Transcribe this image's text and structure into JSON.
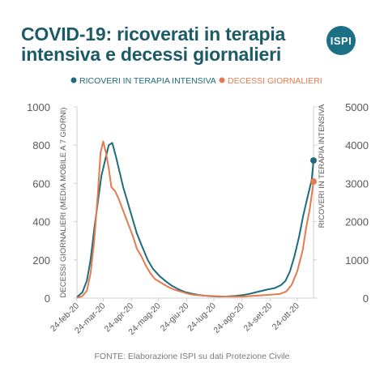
{
  "title_line1": "COVID-19: ricoverati in terapia",
  "title_line2": "intensiva e decessi giornalieri",
  "logo_text": "ISPI",
  "source": "FONTE: Elaborazione ISPI su dati Protezione Civile",
  "colors": {
    "title": "#1d5a67",
    "logo_bg": "#1c6f84",
    "icu": "#1e6b7b",
    "deaths": "#e57a4e",
    "axis_text": "#595959",
    "grid": "#cfcfcf"
  },
  "chart_data": {
    "type": "line",
    "legend_position": "top",
    "grid": false,
    "ylabel_left": "DECESSI GIORNALIERI (MEDIA MOBILE A 7 GIORNI)",
    "ylabel_right": "RICOVERI IN TERAPIA INTENSIVA",
    "ylim_left": [
      0,
      1000
    ],
    "ylim_right": [
      0,
      5000
    ],
    "yticks_left": [
      0,
      200,
      400,
      600,
      800,
      1000
    ],
    "yticks_right": [
      0,
      1000,
      2000,
      3000,
      4000,
      5000
    ],
    "xlim": [
      "2020-02-24",
      "2020-11-11"
    ],
    "xticks": [
      {
        "date": "2020-02-24",
        "label": "24-feb-20"
      },
      {
        "date": "2020-03-24",
        "label": "24-mar-20"
      },
      {
        "date": "2020-04-24",
        "label": "24-apr-20"
      },
      {
        "date": "2020-05-24",
        "label": "24-mag-20"
      },
      {
        "date": "2020-06-24",
        "label": "24-giu-20"
      },
      {
        "date": "2020-07-24",
        "label": "24-lug-20"
      },
      {
        "date": "2020-08-24",
        "label": "24-ago-20"
      },
      {
        "date": "2020-09-24",
        "label": "24-set-20"
      },
      {
        "date": "2020-10-24",
        "label": "24-ott-20"
      }
    ],
    "series": [
      {
        "name": "RICOVERI IN TERAPIA INTENSIVA",
        "axis": "right",
        "color": "#1e6b7b",
        "points": [
          [
            "2020-02-24",
            25
          ],
          [
            "2020-03-01",
            150
          ],
          [
            "2020-03-06",
            462
          ],
          [
            "2020-03-10",
            1000
          ],
          [
            "2020-03-14",
            1800
          ],
          [
            "2020-03-18",
            2500
          ],
          [
            "2020-03-22",
            3200
          ],
          [
            "2020-03-26",
            3600
          ],
          [
            "2020-03-30",
            4000
          ],
          [
            "2020-04-03",
            4060
          ],
          [
            "2020-04-07",
            3700
          ],
          [
            "2020-04-11",
            3300
          ],
          [
            "2020-04-15",
            2900
          ],
          [
            "2020-04-20",
            2500
          ],
          [
            "2020-04-25",
            2100
          ],
          [
            "2020-04-30",
            1700
          ],
          [
            "2020-05-05",
            1400
          ],
          [
            "2020-05-12",
            1000
          ],
          [
            "2020-05-18",
            760
          ],
          [
            "2020-05-25",
            580
          ],
          [
            "2020-06-01",
            440
          ],
          [
            "2020-06-08",
            320
          ],
          [
            "2020-06-15",
            230
          ],
          [
            "2020-06-22",
            160
          ],
          [
            "2020-07-01",
            110
          ],
          [
            "2020-07-10",
            75
          ],
          [
            "2020-07-20",
            50
          ],
          [
            "2020-07-30",
            40
          ],
          [
            "2020-08-08",
            45
          ],
          [
            "2020-08-17",
            60
          ],
          [
            "2020-08-25",
            80
          ],
          [
            "2020-09-01",
            110
          ],
          [
            "2020-09-08",
            150
          ],
          [
            "2020-09-15",
            190
          ],
          [
            "2020-09-22",
            230
          ],
          [
            "2020-09-29",
            260
          ],
          [
            "2020-10-06",
            340
          ],
          [
            "2020-10-11",
            450
          ],
          [
            "2020-10-16",
            700
          ],
          [
            "2020-10-21",
            1100
          ],
          [
            "2020-10-26",
            1600
          ],
          [
            "2020-10-31",
            2200
          ],
          [
            "2020-11-05",
            2700
          ],
          [
            "2020-11-09",
            3100
          ],
          [
            "2020-11-11",
            3600
          ]
        ]
      },
      {
        "name": "DECESSI GIORNALIERI",
        "axis": "left",
        "color": "#e57a4e",
        "points": [
          [
            "2020-02-24",
            2
          ],
          [
            "2020-03-01",
            10
          ],
          [
            "2020-03-06",
            40
          ],
          [
            "2020-03-10",
            130
          ],
          [
            "2020-03-14",
            300
          ],
          [
            "2020-03-18",
            540
          ],
          [
            "2020-03-21",
            760
          ],
          [
            "2020-03-24",
            820
          ],
          [
            "2020-03-27",
            760
          ],
          [
            "2020-03-30",
            680
          ],
          [
            "2020-04-02",
            580
          ],
          [
            "2020-04-06",
            560
          ],
          [
            "2020-04-10",
            520
          ],
          [
            "2020-04-14",
            470
          ],
          [
            "2020-04-18",
            420
          ],
          [
            "2020-04-22",
            370
          ],
          [
            "2020-04-26",
            320
          ],
          [
            "2020-04-30",
            260
          ],
          [
            "2020-05-05",
            220
          ],
          [
            "2020-05-10",
            170
          ],
          [
            "2020-05-15",
            130
          ],
          [
            "2020-05-20",
            100
          ],
          [
            "2020-05-27",
            80
          ],
          [
            "2020-06-03",
            60
          ],
          [
            "2020-06-10",
            45
          ],
          [
            "2020-06-17",
            35
          ],
          [
            "2020-06-24",
            25
          ],
          [
            "2020-07-01",
            18
          ],
          [
            "2020-07-10",
            14
          ],
          [
            "2020-07-20",
            12
          ],
          [
            "2020-08-01",
            9
          ],
          [
            "2020-08-12",
            8
          ],
          [
            "2020-08-24",
            8
          ],
          [
            "2020-09-05",
            12
          ],
          [
            "2020-09-15",
            15
          ],
          [
            "2020-09-25",
            18
          ],
          [
            "2020-10-05",
            22
          ],
          [
            "2020-10-12",
            35
          ],
          [
            "2020-10-18",
            70
          ],
          [
            "2020-10-24",
            140
          ],
          [
            "2020-10-30",
            250
          ],
          [
            "2020-11-03",
            370
          ],
          [
            "2020-11-07",
            470
          ],
          [
            "2020-11-11",
            610
          ]
        ]
      }
    ]
  }
}
